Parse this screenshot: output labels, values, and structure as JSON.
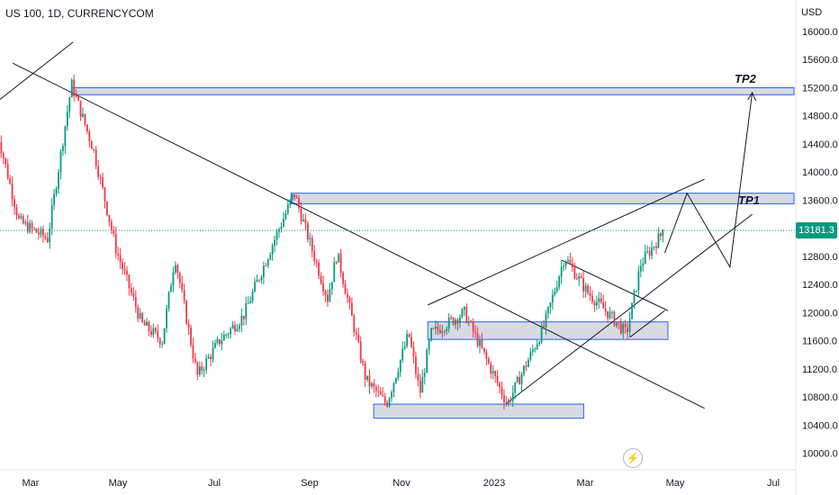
{
  "header": {
    "symbol": "US 100, 1D, CURRENCYCOM",
    "currency": "USD"
  },
  "price_tag": "13181.3",
  "labels": {
    "tp1": "TP1",
    "tp2": "TP2"
  },
  "icons": {
    "bolt": "lightning-icon"
  },
  "colors": {
    "up": "#089981",
    "down": "#f23645",
    "zone_fill": "#d1d4dc",
    "zone_border": "#2962ff",
    "line": "#131722"
  },
  "chart_data": {
    "type": "candlestick",
    "title": "",
    "xlabel": "",
    "ylabel": "",
    "x_ticks": [
      "Mar",
      "May",
      "Jul",
      "Sep",
      "Nov",
      "2023",
      "Mar",
      "May",
      "Jul"
    ],
    "y_ticks": [
      16000,
      15600,
      15200,
      14800,
      14400,
      14000,
      13600,
      13200,
      12800,
      12400,
      12000,
      11600,
      11200,
      10800,
      10400,
      10000
    ],
    "y_tick_labels": [
      "16000.0",
      "15600.0",
      "15200.0",
      "14800.0",
      "14400.0",
      "14000.0",
      "13600.0",
      "13200.0",
      "12800.0",
      "12400.0",
      "12000.0",
      "11600.0",
      "11200.0",
      "10800.0",
      "10400.0",
      "10000.0"
    ],
    "ylim": [
      9900,
      16250
    ],
    "last_price": 13181.3,
    "price_path": [
      [
        "2022-02-10",
        14600
      ],
      [
        "2022-02-24",
        13300
      ],
      [
        "2022-03-14",
        13050
      ],
      [
        "2022-03-29",
        15250
      ],
      [
        "2022-04-12",
        14300
      ],
      [
        "2022-04-26",
        12900
      ],
      [
        "2022-05-12",
        11850
      ],
      [
        "2022-05-25",
        11600
      ],
      [
        "2022-06-02",
        12800
      ],
      [
        "2022-06-16",
        11100
      ],
      [
        "2022-06-30",
        11600
      ],
      [
        "2022-07-15",
        11950
      ],
      [
        "2022-08-01",
        12900
      ],
      [
        "2022-08-16",
        13700
      ],
      [
        "2022-09-06",
        12200
      ],
      [
        "2022-09-12",
        12850
      ],
      [
        "2022-09-30",
        11050
      ],
      [
        "2022-10-13",
        10700
      ],
      [
        "2022-10-27",
        11700
      ],
      [
        "2022-11-03",
        10850
      ],
      [
        "2022-11-10",
        11700
      ],
      [
        "2022-12-01",
        12000
      ],
      [
        "2022-12-28",
        10700
      ],
      [
        "2023-01-20",
        11800
      ],
      [
        "2023-02-02",
        12800
      ],
      [
        "2023-02-16",
        12300
      ],
      [
        "2023-03-01",
        12000
      ],
      [
        "2023-03-13",
        11700
      ],
      [
        "2023-03-22",
        12700
      ],
      [
        "2023-04-06",
        13181
      ]
    ],
    "zones": [
      {
        "from": "2022-03-29",
        "to": "2023-07-10",
        "low": 15100,
        "high": 15200,
        "label": "TP2"
      },
      {
        "from": "2022-08-14",
        "to": "2023-07-10",
        "low": 13550,
        "high": 13700,
        "label": "TP1"
      },
      {
        "from": "2022-11-08",
        "to": "2023-04-08",
        "low": 11620,
        "high": 11870
      },
      {
        "from": "2022-10-05",
        "to": "2023-02-14",
        "low": 10500,
        "high": 10700
      }
    ],
    "lines": [
      {
        "from": [
          "2022-02-10",
          15000
        ],
        "to": [
          "2022-03-30",
          15850
        ]
      },
      {
        "from": [
          "2022-02-20",
          15550
        ],
        "to": [
          "2023-05-01",
          10640
        ]
      },
      {
        "from": [
          "2022-11-08",
          12110
        ],
        "to": [
          "2023-05-01",
          13900
        ]
      },
      {
        "from": [
          "2022-12-27",
          10700
        ],
        "to": [
          "2023-05-31",
          13400
        ]
      },
      {
        "from": [
          "2023-01-31",
          12750
        ],
        "to": [
          "2023-04-08",
          12030
        ]
      },
      {
        "from": [
          "2023-03-15",
          11650
        ],
        "to": [
          "2023-04-06",
          12030
        ]
      }
    ],
    "projection": [
      [
        "2023-04-06",
        12850
      ],
      [
        "2023-04-20",
        13700
      ],
      [
        "2023-05-17",
        12650
      ],
      [
        "2023-05-31",
        15130
      ]
    ],
    "grid": false,
    "legend": "none"
  }
}
